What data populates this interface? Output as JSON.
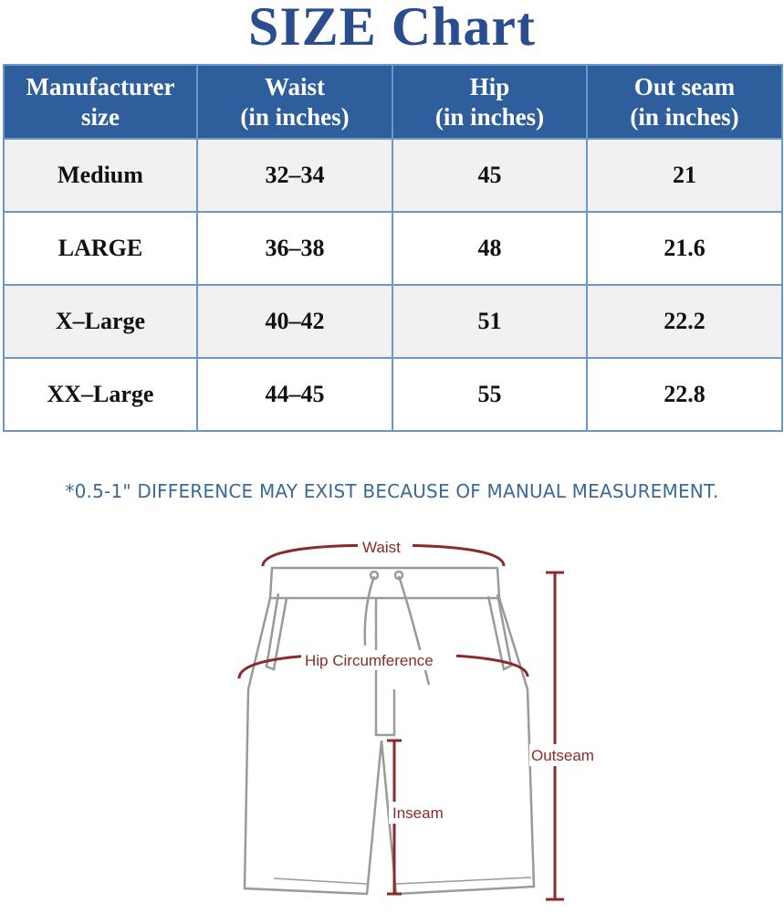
{
  "title": "SIZE Chart",
  "table": {
    "headers": [
      {
        "line1": "Manufacturer",
        "line2": "size"
      },
      {
        "line1": "Waist",
        "line2": "(in inches)"
      },
      {
        "line1": "Hip",
        "line2": "(in inches)"
      },
      {
        "line1": "Out seam",
        "line2": "(in inches)"
      }
    ],
    "rows": [
      [
        "Medium",
        "32–34",
        "45",
        "21"
      ],
      [
        "LARGE",
        "36–38",
        "48",
        "21.6"
      ],
      [
        "X–Large",
        "40–42",
        "51",
        "22.2"
      ],
      [
        "XX–Large",
        "44–45",
        "55",
        "22.8"
      ]
    ]
  },
  "note": "*0.5-1\" DIFFERENCE MAY EXIST BECAUSE OF MANUAL MEASUREMENT.",
  "diagram": {
    "waist": "Waist",
    "hip": "Hip Circumference",
    "outseam": "Outseam",
    "inseam": "Inseam"
  },
  "colors": {
    "title": "#2a4d8f",
    "header_bg": "#2e5f9c",
    "border": "#6c98c9",
    "note": "#3a6a96",
    "measure": "#8b2a2a"
  }
}
